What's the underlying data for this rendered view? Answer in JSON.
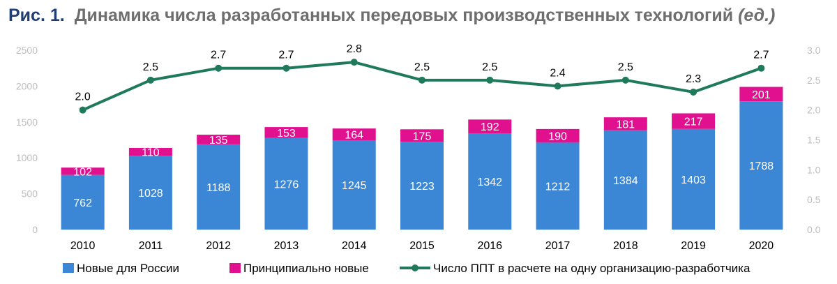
{
  "title": {
    "prefix": "Рис. 1.",
    "text": "Динамика числа разработанных передовых производственных технологий",
    "unit": "(ед.)"
  },
  "colors": {
    "title_prefix": "#1f3f73",
    "new_for_russia": "#3b87d6",
    "fundamentally_new": "#e0108f",
    "line": "#1e7a5a"
  },
  "chart_data": {
    "type": "bar",
    "stacked": true,
    "categories": [
      "2010",
      "2011",
      "2012",
      "2013",
      "2014",
      "2015",
      "2016",
      "2017",
      "2018",
      "2019",
      "2020"
    ],
    "series": [
      {
        "name": "Новые для России",
        "type": "bar",
        "axis": "left",
        "color": "#3b87d6",
        "values": [
          762,
          1028,
          1188,
          1276,
          1245,
          1223,
          1342,
          1212,
          1384,
          1403,
          1788
        ]
      },
      {
        "name": "Принципиально новые",
        "type": "bar",
        "axis": "left",
        "color": "#e0108f",
        "values": [
          102,
          110,
          135,
          153,
          164,
          175,
          192,
          190,
          181,
          217,
          201
        ]
      },
      {
        "name": "Число ППТ в расчете на одну организацию-разработчика",
        "type": "line",
        "axis": "right",
        "color": "#1e7a5a",
        "values": [
          2.0,
          2.5,
          2.7,
          2.7,
          2.8,
          2.5,
          2.5,
          2.4,
          2.5,
          2.3,
          2.7
        ]
      }
    ],
    "line_value_labels": [
      "2.0",
      "2.5",
      "2.7",
      "2.7",
      "2.8",
      "2.5",
      "2.5",
      "2.4",
      "2.5",
      "2.3",
      "2.7"
    ],
    "y_left": {
      "ylim": [
        0,
        2500
      ],
      "ticks": [
        0,
        500,
        1000,
        1500,
        2000,
        2500
      ],
      "tick_labels": [
        "0",
        "500",
        "1000",
        "1500",
        "2000",
        "2500"
      ]
    },
    "y_right": {
      "ylim": [
        0,
        3.0
      ],
      "ticks": [
        0,
        0.5,
        1.0,
        1.5,
        2.0,
        2.5,
        3.0
      ],
      "tick_labels": [
        "0.0",
        "0.5",
        "1.0",
        "1.5",
        "2.0",
        "2.5",
        "3.0"
      ]
    },
    "grid": false,
    "legend_position": "bottom"
  }
}
